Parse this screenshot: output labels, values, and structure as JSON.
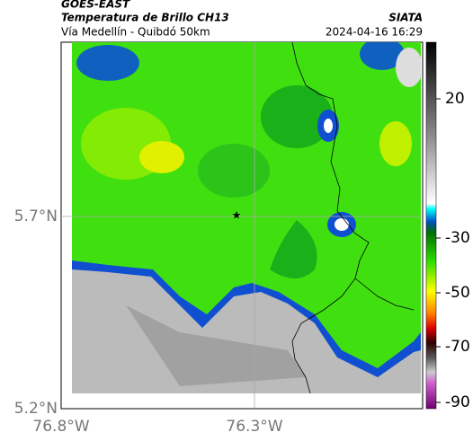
{
  "header": {
    "source": "GOES-EAST",
    "title": "Temperatura de Brillo CH13",
    "subtitle": "Vía Medellín - Quibdó 50km",
    "agency": "SIATA",
    "timestamp": "2024-04-16 16:29"
  },
  "map": {
    "lat_labels": [
      "5.7°N",
      "5.2°N"
    ],
    "lon_labels": [
      "76.8°W",
      "76.3°W"
    ]
  },
  "colorbar": {
    "ticks": [
      "20",
      "-30",
      "-50",
      "-70",
      "-90"
    ]
  }
}
